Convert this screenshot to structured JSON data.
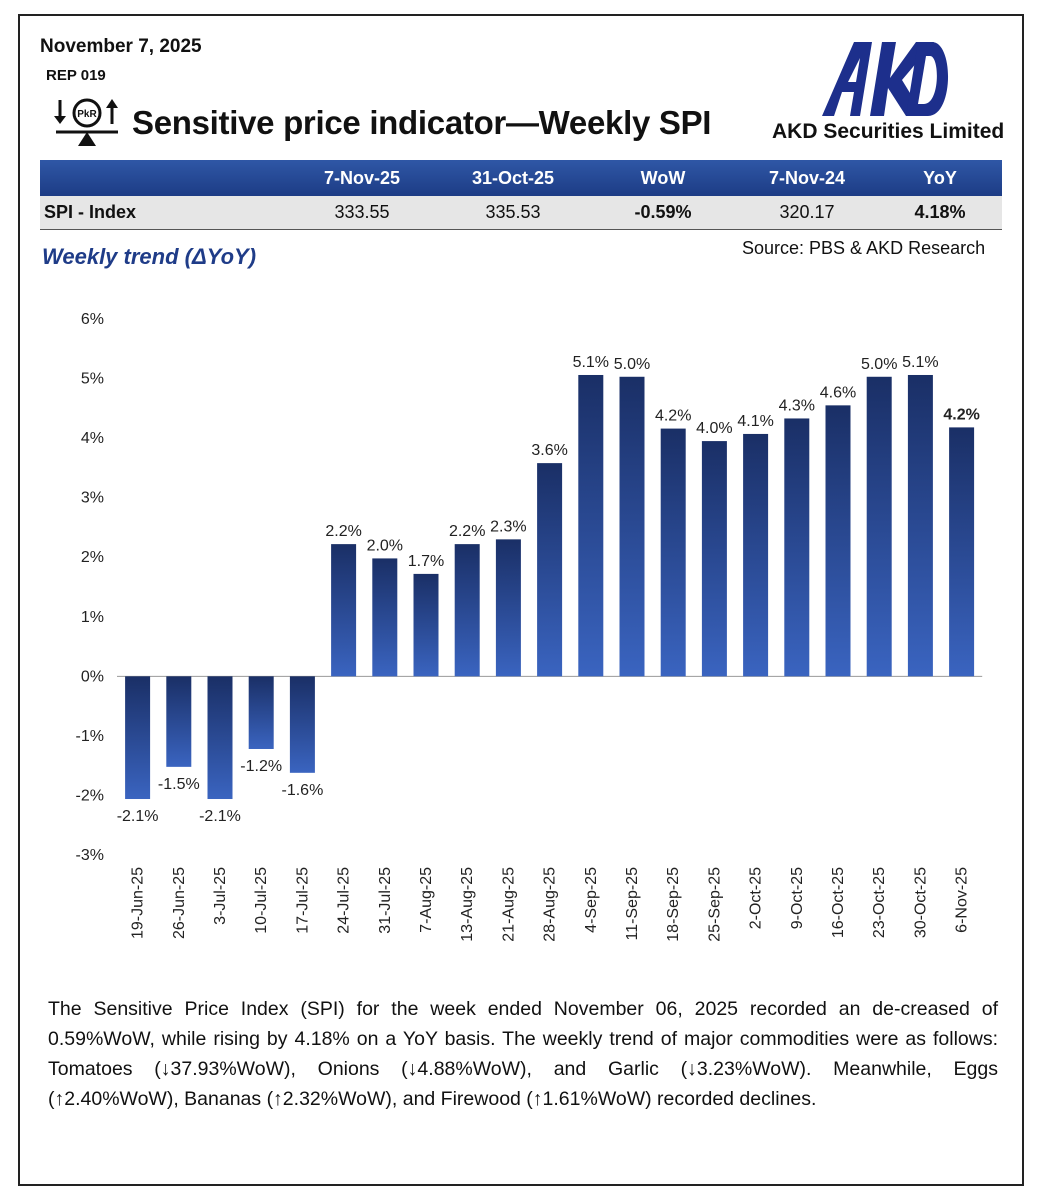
{
  "header": {
    "date": "November 7, 2025",
    "report_id": "REP 019",
    "title": "Sensitive price indicator—Weekly SPI",
    "icon_label": "PkR",
    "company": "AKD Securities Limited",
    "logo_text": "AKD"
  },
  "table": {
    "headers": [
      "",
      "7-Nov-25",
      "31-Oct-25",
      "WoW",
      "7-Nov-24",
      "YoY"
    ],
    "row": [
      "SPI - Index",
      "333.55",
      "335.53",
      "-0.59%",
      "320.17",
      "4.18%"
    ]
  },
  "subtitle": "Weekly trend (ΔYoY)",
  "source": "Source: PBS & AKD Research",
  "colors": {
    "bar_top": "#1a2f66",
    "bar_bottom": "#3a64c0",
    "header_bg": "#1f3f8a",
    "subtitle": "#1f3c88"
  },
  "chart_data": {
    "type": "bar",
    "categories": [
      "19-Jun-25",
      "26-Jun-25",
      "3-Jul-25",
      "10-Jul-25",
      "17-Jul-25",
      "24-Jul-25",
      "31-Jul-25",
      "7-Aug-25",
      "13-Aug-25",
      "21-Aug-25",
      "28-Aug-25",
      "4-Sep-25",
      "11-Sep-25",
      "18-Sep-25",
      "25-Sep-25",
      "2-Oct-25",
      "9-Oct-25",
      "16-Oct-25",
      "23-Oct-25",
      "30-Oct-25",
      "6-Nov-25"
    ],
    "values": [
      -2.06,
      -1.52,
      -2.06,
      -1.22,
      -1.62,
      2.22,
      1.98,
      1.72,
      2.22,
      2.3,
      3.58,
      5.06,
      5.03,
      4.16,
      3.95,
      4.07,
      4.33,
      4.55,
      5.03,
      5.06,
      4.18
    ],
    "labels": [
      "-2.1%",
      "-1.5%",
      "-2.1%",
      "-1.2%",
      "-1.6%",
      "2.2%",
      "2.0%",
      "1.7%",
      "2.2%",
      "2.3%",
      "3.6%",
      "5.1%",
      "5.0%",
      "4.2%",
      "4.0%",
      "4.1%",
      "4.3%",
      "4.6%",
      "5.0%",
      "5.1%",
      "4.2%"
    ],
    "y_ticks": [
      "6%",
      "5%",
      "4%",
      "3%",
      "2%",
      "1%",
      "0%",
      "-1%",
      "-2%",
      "-3%"
    ],
    "ylim": [
      -3,
      6
    ],
    "grid": false
  },
  "paragraph": "The Sensitive Price Index (SPI) for the week ended November 06, 2025 recorded an de-creased  of 0.59%WoW, while rising by 4.18% on a YoY basis. The weekly trend of major commodities were as follows: Tomatoes (↓37.93%WoW), Onions (↓4.88%WoW), and Garlic (↓3.23%WoW). Meanwhile, Eggs (↑2.40%WoW), Bananas  (↑2.32%WoW), and Firewood  (↑1.61%WoW) recorded declines."
}
